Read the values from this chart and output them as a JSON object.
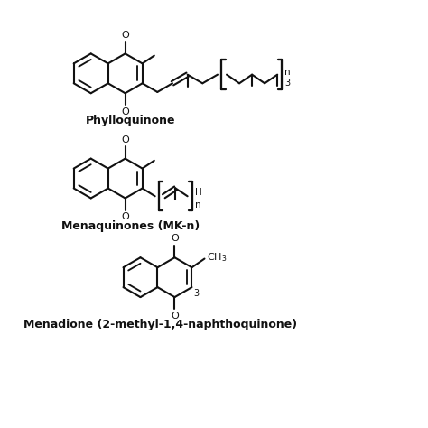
{
  "background": "#ffffff",
  "label1": "Phylloquinone",
  "label2": "Menaquinones (MK-n)",
  "label3": "Menadione (2-methyl-1,4-naphthoquinone)",
  "fontsize_labels": 9,
  "line_color": "#111111",
  "line_width": 1.5,
  "xlim": [
    0,
    10
  ],
  "ylim": [
    0,
    10
  ]
}
